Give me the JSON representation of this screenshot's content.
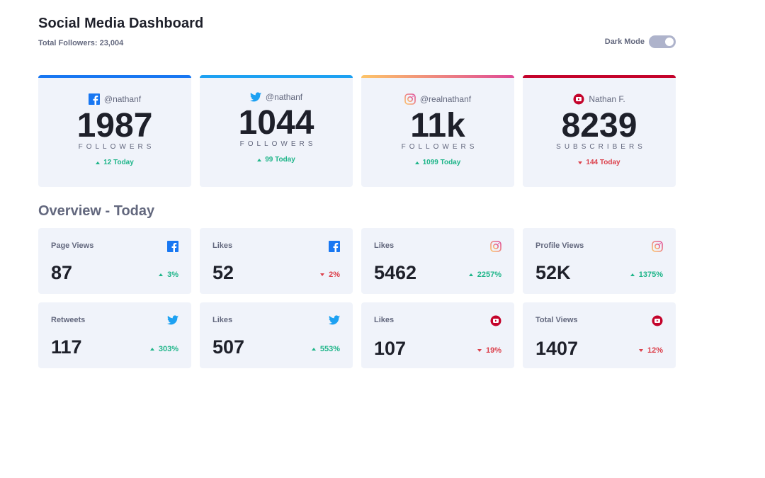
{
  "header": {
    "title": "Social Media Dashboard",
    "total_followers": "Total Followers: 23,004",
    "dark_mode_label": "Dark Mode"
  },
  "colors": {
    "facebook": "#1877f2",
    "twitter": "#1da1f2",
    "instagram_gradient": [
      "#fdc468",
      "#df4996"
    ],
    "youtube": "#c4032b",
    "positive": "#1eb589",
    "negative": "#dc414c",
    "card_bg": "#f0f3fa"
  },
  "cards": [
    {
      "platform": "facebook",
      "icon": "facebook-icon",
      "handle": "@nathanf",
      "count": "1987",
      "unit": "FOLLOWERS",
      "today": "12 Today",
      "trend": "up"
    },
    {
      "platform": "twitter",
      "icon": "twitter-icon",
      "handle": "@nathanf",
      "count": "1044",
      "unit": "FOLLOWERS",
      "today": "99 Today",
      "trend": "up"
    },
    {
      "platform": "instagram",
      "icon": "instagram-icon",
      "handle": "@realnathanf",
      "count": "11k",
      "unit": "FOLLOWERS",
      "today": "1099 Today",
      "trend": "up"
    },
    {
      "platform": "youtube",
      "icon": "youtube-icon",
      "handle": "Nathan F.",
      "count": "8239",
      "unit": "SUBSCRIBERS",
      "today": "144 Today",
      "trend": "down"
    }
  ],
  "overview": {
    "title": "Overview - Today",
    "tiles": [
      {
        "label": "Page Views",
        "icon": "facebook-icon",
        "value": "87",
        "change": "3%",
        "trend": "up"
      },
      {
        "label": "Likes",
        "icon": "facebook-icon",
        "value": "52",
        "change": "2%",
        "trend": "down"
      },
      {
        "label": "Likes",
        "icon": "instagram-icon",
        "value": "5462",
        "change": "2257%",
        "trend": "up"
      },
      {
        "label": "Profile Views",
        "icon": "instagram-icon",
        "value": "52K",
        "change": "1375%",
        "trend": "up"
      },
      {
        "label": "Retweets",
        "icon": "twitter-icon",
        "value": "117",
        "change": "303%",
        "trend": "up"
      },
      {
        "label": "Likes",
        "icon": "twitter-icon",
        "value": "507",
        "change": "553%",
        "trend": "up"
      },
      {
        "label": "Likes",
        "icon": "youtube-icon",
        "value": "107",
        "change": "19%",
        "trend": "down"
      },
      {
        "label": "Total Views",
        "icon": "youtube-icon",
        "value": "1407",
        "change": "12%",
        "trend": "down"
      }
    ]
  }
}
